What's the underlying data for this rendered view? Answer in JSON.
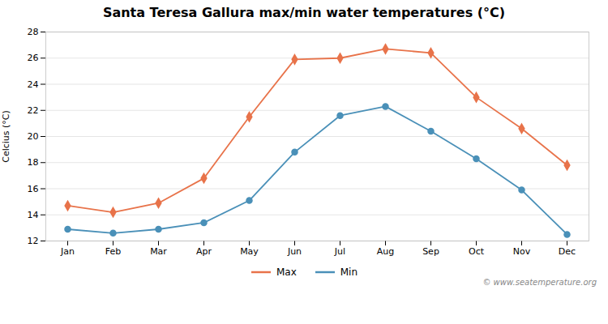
{
  "chart_data": {
    "type": "line",
    "title": "Santa Teresa Gallura max/min water temperatures (°C)",
    "ylabel": "Celcius (°C)",
    "categories": [
      "Jan",
      "Feb",
      "Mar",
      "Apr",
      "May",
      "Jun",
      "Jul",
      "Aug",
      "Sep",
      "Oct",
      "Nov",
      "Dec"
    ],
    "series": [
      {
        "name": "Max",
        "color": "#e8734a",
        "marker": "diamond",
        "values": [
          14.7,
          14.2,
          14.9,
          16.8,
          21.5,
          25.9,
          26.0,
          26.7,
          26.4,
          23.0,
          20.6,
          17.8
        ]
      },
      {
        "name": "Min",
        "color": "#4a90b8",
        "marker": "circle",
        "values": [
          12.9,
          12.6,
          12.9,
          13.4,
          15.1,
          18.8,
          21.6,
          22.3,
          20.4,
          18.3,
          15.9,
          12.5
        ]
      }
    ],
    "ylim": [
      12,
      28
    ],
    "yticks": [
      12,
      14,
      16,
      18,
      20,
      22,
      24,
      26,
      28
    ],
    "grid": true,
    "legend": "bottom",
    "annotations": [
      "© www.seatemperature.org"
    ]
  }
}
